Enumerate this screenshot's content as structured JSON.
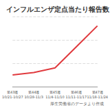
{
  "chart_data": {
    "type": "line",
    "title": "インフルエンザ定点当たり報告数",
    "categories": [
      "第43週\n10/21-10/27",
      "第44週\n10/28-11/3",
      "第45週\n11/4-11/10",
      "第46週\n11/11-11/17",
      "第47週\n11/18-11/24"
    ],
    "values": [
      0.5,
      0.6,
      0.8,
      1.7,
      2.6
    ],
    "color": "#e03a3e",
    "ylim": [
      0,
      3
    ],
    "yticks": [
      0,
      1,
      2,
      3
    ],
    "grid": true,
    "tick_labels": "x",
    "annotations": [
      "厚生労働省のデータより作成"
    ]
  }
}
